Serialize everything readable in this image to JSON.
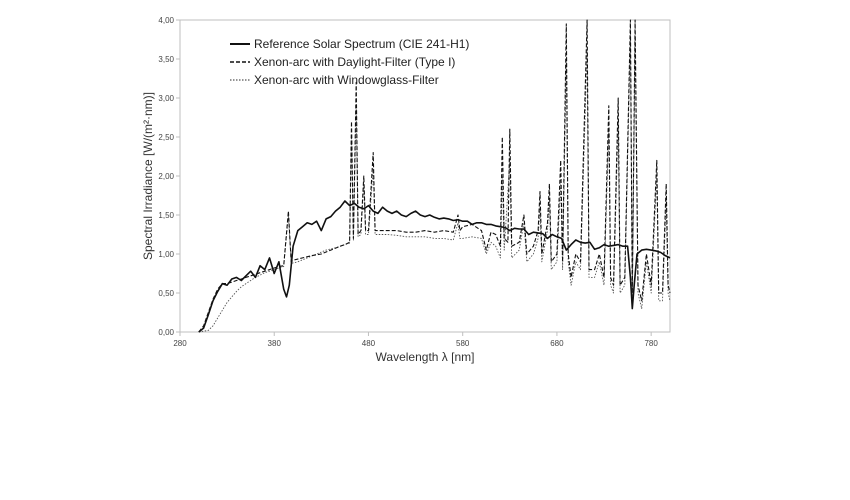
{
  "chart_data": {
    "type": "line",
    "xlabel": "Wavelength λ [nm]",
    "ylabel": "Spectral Irradiance [W/(m²·nm)]",
    "xlim": [
      280,
      800
    ],
    "ylim": [
      0,
      4
    ],
    "x_ticks": [
      "280",
      "380",
      "480",
      "580",
      "680",
      "780"
    ],
    "y_ticks": [
      "0,00",
      "0,50",
      "1,00",
      "1,50",
      "2,00",
      "2,50",
      "3,00",
      "3,50",
      "4,00"
    ],
    "grid": false,
    "legend_position": "top-left",
    "series": [
      {
        "name": "Reference Solar Spectrum (CIE 241-H1)",
        "style": "solid",
        "color": "#111111",
        "points": [
          [
            300,
            0.0
          ],
          [
            305,
            0.05
          ],
          [
            310,
            0.22
          ],
          [
            315,
            0.4
          ],
          [
            320,
            0.52
          ],
          [
            325,
            0.62
          ],
          [
            330,
            0.6
          ],
          [
            335,
            0.68
          ],
          [
            340,
            0.7
          ],
          [
            345,
            0.66
          ],
          [
            350,
            0.72
          ],
          [
            355,
            0.78
          ],
          [
            360,
            0.7
          ],
          [
            365,
            0.85
          ],
          [
            370,
            0.8
          ],
          [
            375,
            0.95
          ],
          [
            380,
            0.75
          ],
          [
            385,
            0.9
          ],
          [
            390,
            0.55
          ],
          [
            393,
            0.45
          ],
          [
            396,
            0.6
          ],
          [
            400,
            1.1
          ],
          [
            405,
            1.3
          ],
          [
            410,
            1.35
          ],
          [
            415,
            1.4
          ],
          [
            420,
            1.38
          ],
          [
            425,
            1.42
          ],
          [
            430,
            1.3
          ],
          [
            435,
            1.45
          ],
          [
            440,
            1.48
          ],
          [
            445,
            1.55
          ],
          [
            450,
            1.6
          ],
          [
            455,
            1.68
          ],
          [
            460,
            1.62
          ],
          [
            465,
            1.65
          ],
          [
            470,
            1.6
          ],
          [
            475,
            1.58
          ],
          [
            480,
            1.62
          ],
          [
            485,
            1.55
          ],
          [
            490,
            1.52
          ],
          [
            495,
            1.6
          ],
          [
            500,
            1.55
          ],
          [
            505,
            1.52
          ],
          [
            510,
            1.55
          ],
          [
            515,
            1.5
          ],
          [
            520,
            1.48
          ],
          [
            525,
            1.52
          ],
          [
            530,
            1.55
          ],
          [
            535,
            1.5
          ],
          [
            540,
            1.48
          ],
          [
            545,
            1.5
          ],
          [
            550,
            1.47
          ],
          [
            555,
            1.45
          ],
          [
            560,
            1.46
          ],
          [
            565,
            1.45
          ],
          [
            570,
            1.43
          ],
          [
            575,
            1.44
          ],
          [
            580,
            1.42
          ],
          [
            585,
            1.42
          ],
          [
            590,
            1.38
          ],
          [
            595,
            1.4
          ],
          [
            600,
            1.4
          ],
          [
            605,
            1.38
          ],
          [
            610,
            1.38
          ],
          [
            615,
            1.36
          ],
          [
            620,
            1.35
          ],
          [
            625,
            1.34
          ],
          [
            630,
            1.3
          ],
          [
            635,
            1.33
          ],
          [
            640,
            1.32
          ],
          [
            645,
            1.32
          ],
          [
            650,
            1.25
          ],
          [
            655,
            1.28
          ],
          [
            660,
            1.27
          ],
          [
            665,
            1.26
          ],
          [
            670,
            1.2
          ],
          [
            675,
            1.25
          ],
          [
            680,
            1.22
          ],
          [
            685,
            1.2
          ],
          [
            690,
            1.05
          ],
          [
            695,
            1.12
          ],
          [
            700,
            1.18
          ],
          [
            705,
            1.15
          ],
          [
            710,
            1.14
          ],
          [
            715,
            1.15
          ],
          [
            720,
            1.06
          ],
          [
            725,
            1.08
          ],
          [
            730,
            1.12
          ],
          [
            735,
            1.1
          ],
          [
            740,
            1.11
          ],
          [
            745,
            1.12
          ],
          [
            750,
            1.1
          ],
          [
            755,
            1.1
          ],
          [
            758,
            0.7
          ],
          [
            760,
            0.3
          ],
          [
            762,
            0.6
          ],
          [
            765,
            1.0
          ],
          [
            770,
            1.05
          ],
          [
            775,
            1.06
          ],
          [
            780,
            1.05
          ],
          [
            785,
            1.04
          ],
          [
            790,
            1.02
          ],
          [
            795,
            0.98
          ],
          [
            800,
            0.95
          ]
        ]
      },
      {
        "name": "Xenon-arc with Daylight-Filter (Type I)",
        "style": "dashed",
        "color": "#111111",
        "points": [
          [
            300,
            0.0
          ],
          [
            305,
            0.08
          ],
          [
            310,
            0.25
          ],
          [
            315,
            0.42
          ],
          [
            320,
            0.55
          ],
          [
            325,
            0.62
          ],
          [
            330,
            0.62
          ],
          [
            335,
            0.64
          ],
          [
            340,
            0.66
          ],
          [
            345,
            0.68
          ],
          [
            350,
            0.7
          ],
          [
            355,
            0.72
          ],
          [
            360,
            0.74
          ],
          [
            365,
            0.76
          ],
          [
            370,
            0.78
          ],
          [
            375,
            0.8
          ],
          [
            380,
            0.82
          ],
          [
            385,
            0.84
          ],
          [
            390,
            0.85
          ],
          [
            395,
            1.55
          ],
          [
            398,
            0.9
          ],
          [
            400,
            0.92
          ],
          [
            410,
            0.95
          ],
          [
            420,
            0.98
          ],
          [
            430,
            1.0
          ],
          [
            440,
            1.05
          ],
          [
            450,
            1.1
          ],
          [
            455,
            1.12
          ],
          [
            460,
            1.15
          ],
          [
            462,
            2.7
          ],
          [
            464,
            1.2
          ],
          [
            467,
            3.2
          ],
          [
            469,
            1.25
          ],
          [
            472,
            1.3
          ],
          [
            475,
            2.0
          ],
          [
            477,
            1.3
          ],
          [
            480,
            1.3
          ],
          [
            485,
            2.3
          ],
          [
            487,
            1.3
          ],
          [
            490,
            1.3
          ],
          [
            500,
            1.3
          ],
          [
            510,
            1.3
          ],
          [
            520,
            1.28
          ],
          [
            530,
            1.28
          ],
          [
            540,
            1.3
          ],
          [
            550,
            1.28
          ],
          [
            560,
            1.3
          ],
          [
            570,
            1.28
          ],
          [
            575,
            1.5
          ],
          [
            577,
            1.3
          ],
          [
            580,
            1.35
          ],
          [
            590,
            1.38
          ],
          [
            600,
            1.3
          ],
          [
            605,
            1.05
          ],
          [
            610,
            1.28
          ],
          [
            615,
            1.25
          ],
          [
            620,
            1.1
          ],
          [
            622,
            2.5
          ],
          [
            624,
            1.2
          ],
          [
            628,
            1.15
          ],
          [
            630,
            2.6
          ],
          [
            632,
            1.1
          ],
          [
            640,
            1.15
          ],
          [
            645,
            1.5
          ],
          [
            648,
            1.0
          ],
          [
            655,
            1.1
          ],
          [
            660,
            1.3
          ],
          [
            662,
            1.8
          ],
          [
            664,
            1.0
          ],
          [
            670,
            1.4
          ],
          [
            672,
            1.9
          ],
          [
            674,
            0.9
          ],
          [
            680,
            1.0
          ],
          [
            684,
            2.2
          ],
          [
            686,
            0.9
          ],
          [
            690,
            3.95
          ],
          [
            692,
            1.0
          ],
          [
            695,
            0.7
          ],
          [
            700,
            1.0
          ],
          [
            705,
            0.9
          ],
          [
            712,
            4.0
          ],
          [
            714,
            0.8
          ],
          [
            720,
            0.8
          ],
          [
            725,
            1.0
          ],
          [
            730,
            0.7
          ],
          [
            735,
            2.9
          ],
          [
            737,
            0.7
          ],
          [
            740,
            0.6
          ],
          [
            745,
            3.0
          ],
          [
            747,
            0.6
          ],
          [
            752,
            0.7
          ],
          [
            758,
            4.0
          ],
          [
            760,
            0.5
          ],
          [
            763,
            4.0
          ],
          [
            766,
            0.6
          ],
          [
            770,
            0.4
          ],
          [
            775,
            1.0
          ],
          [
            780,
            0.6
          ],
          [
            786,
            2.2
          ],
          [
            788,
            0.5
          ],
          [
            792,
            0.5
          ],
          [
            796,
            1.9
          ],
          [
            798,
            0.6
          ],
          [
            800,
            0.5
          ]
        ]
      },
      {
        "name": "Xenon-arc with Windowglass-Filter",
        "style": "dotted",
        "color": "#555555",
        "points": [
          [
            300,
            0.0
          ],
          [
            310,
            0.02
          ],
          [
            315,
            0.08
          ],
          [
            320,
            0.18
          ],
          [
            325,
            0.28
          ],
          [
            330,
            0.38
          ],
          [
            335,
            0.45
          ],
          [
            340,
            0.52
          ],
          [
            345,
            0.58
          ],
          [
            350,
            0.62
          ],
          [
            355,
            0.66
          ],
          [
            360,
            0.7
          ],
          [
            365,
            0.73
          ],
          [
            370,
            0.76
          ],
          [
            375,
            0.78
          ],
          [
            380,
            0.8
          ],
          [
            385,
            0.82
          ],
          [
            390,
            0.84
          ],
          [
            395,
            1.5
          ],
          [
            398,
            0.88
          ],
          [
            405,
            0.9
          ],
          [
            415,
            0.95
          ],
          [
            425,
            1.0
          ],
          [
            435,
            1.05
          ],
          [
            445,
            1.08
          ],
          [
            455,
            1.12
          ],
          [
            460,
            1.14
          ],
          [
            462,
            2.5
          ],
          [
            464,
            1.18
          ],
          [
            467,
            2.9
          ],
          [
            469,
            1.22
          ],
          [
            472,
            1.25
          ],
          [
            475,
            1.9
          ],
          [
            477,
            1.25
          ],
          [
            480,
            1.25
          ],
          [
            485,
            2.1
          ],
          [
            487,
            1.25
          ],
          [
            490,
            1.25
          ],
          [
            500,
            1.25
          ],
          [
            510,
            1.24
          ],
          [
            520,
            1.22
          ],
          [
            530,
            1.22
          ],
          [
            540,
            1.22
          ],
          [
            550,
            1.2
          ],
          [
            560,
            1.2
          ],
          [
            570,
            1.18
          ],
          [
            575,
            1.4
          ],
          [
            577,
            1.2
          ],
          [
            580,
            1.2
          ],
          [
            590,
            1.22
          ],
          [
            600,
            1.2
          ],
          [
            605,
            1.0
          ],
          [
            610,
            1.15
          ],
          [
            615,
            1.1
          ],
          [
            620,
            0.95
          ],
          [
            622,
            2.0
          ],
          [
            624,
            1.05
          ],
          [
            630,
            2.2
          ],
          [
            632,
            0.95
          ],
          [
            640,
            1.05
          ],
          [
            645,
            1.4
          ],
          [
            648,
            0.9
          ],
          [
            655,
            1.0
          ],
          [
            660,
            1.2
          ],
          [
            662,
            1.6
          ],
          [
            664,
            0.9
          ],
          [
            670,
            1.3
          ],
          [
            672,
            1.7
          ],
          [
            674,
            0.8
          ],
          [
            680,
            0.9
          ],
          [
            684,
            1.9
          ],
          [
            686,
            0.8
          ],
          [
            690,
            3.5
          ],
          [
            692,
            0.9
          ],
          [
            695,
            0.6
          ],
          [
            700,
            0.9
          ],
          [
            705,
            0.8
          ],
          [
            712,
            3.6
          ],
          [
            714,
            0.7
          ],
          [
            720,
            0.7
          ],
          [
            725,
            0.9
          ],
          [
            730,
            0.6
          ],
          [
            735,
            2.6
          ],
          [
            737,
            0.6
          ],
          [
            740,
            0.5
          ],
          [
            745,
            2.7
          ],
          [
            747,
            0.5
          ],
          [
            752,
            0.6
          ],
          [
            758,
            3.8
          ],
          [
            760,
            0.4
          ],
          [
            763,
            3.8
          ],
          [
            766,
            0.5
          ],
          [
            770,
            0.3
          ],
          [
            775,
            0.9
          ],
          [
            780,
            0.5
          ],
          [
            786,
            2.0
          ],
          [
            788,
            0.4
          ],
          [
            792,
            0.4
          ],
          [
            796,
            1.7
          ],
          [
            798,
            0.5
          ],
          [
            800,
            0.4
          ]
        ]
      }
    ]
  }
}
